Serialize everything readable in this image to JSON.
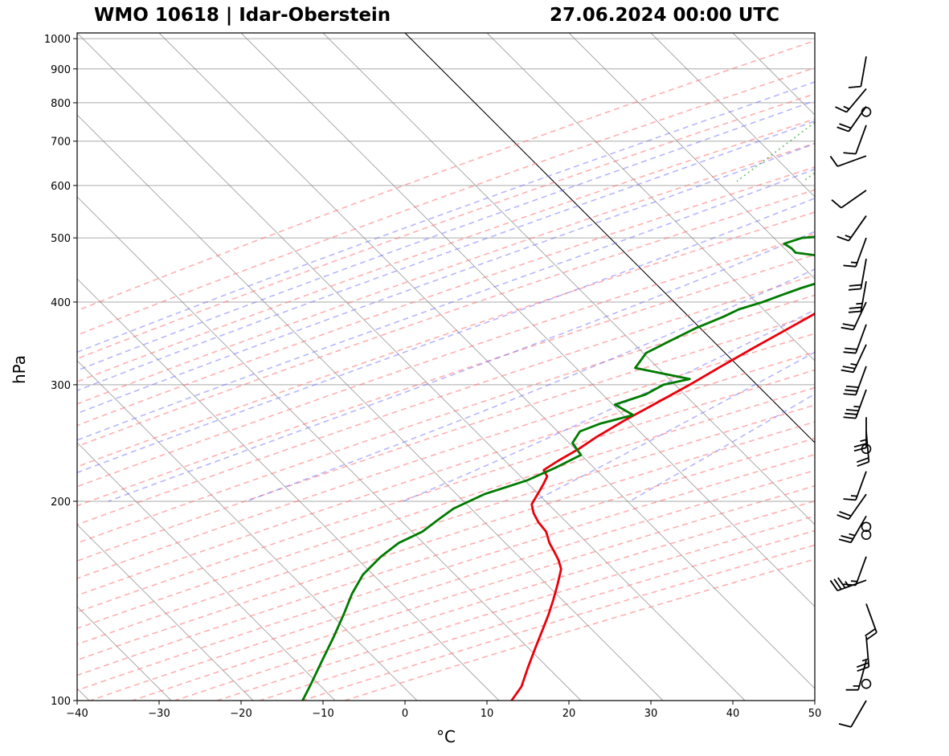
{
  "header": {
    "title_left": "WMO 10618 | Idar-Oberstein",
    "title_right": "27.06.2024 00:00 UTC"
  },
  "colors": {
    "temperature": "#e8000b",
    "dewpoint": "#007a00",
    "dry_adiabat": "#ff6e6e",
    "moist_adiabat": "#6e6eff",
    "mixing_ratio": "#3caa3c",
    "isotherm": "#808080",
    "isobar": "#aaaaaa"
  },
  "chart_data": {
    "type": "line",
    "title": "WMO 10618 | Idar-Oberstein 27.06.2024 00:00 UTC",
    "xlabel": "°C",
    "ylabel": "hPa",
    "xlim": [
      -40,
      50
    ],
    "ylim": [
      1020,
      100
    ],
    "y_scale": "log",
    "skew": "skew-T 45°",
    "grid": true,
    "x_ticks": [
      "−40",
      "−30",
      "−20",
      "−10",
      "0",
      "10",
      "20",
      "30",
      "40",
      "50"
    ],
    "y_ticks": [
      "100",
      "200",
      "300",
      "400",
      "500",
      "600",
      "700",
      "800",
      "900",
      "1000"
    ],
    "highlighted_isotherm_c": 0,
    "series": [
      {
        "name": "Temperature",
        "color": "#e8000b",
        "points": [
          [
            965,
            22.0
          ],
          [
            960,
            25.5
          ],
          [
            945,
            26.5
          ],
          [
            935,
            25.8
          ],
          [
            920,
            24.5
          ],
          [
            900,
            22.8
          ],
          [
            880,
            21.5
          ],
          [
            860,
            20.2
          ],
          [
            840,
            19.0
          ],
          [
            820,
            18.0
          ],
          [
            800,
            17.2
          ],
          [
            780,
            16.8
          ],
          [
            765,
            16.5
          ],
          [
            752,
            17.0
          ],
          [
            740,
            16.7
          ],
          [
            720,
            16.1
          ],
          [
            700,
            15.4
          ],
          [
            670,
            14.1
          ],
          [
            640,
            13.2
          ],
          [
            610,
            12.5
          ],
          [
            580,
            11.8
          ],
          [
            560,
            10.9
          ],
          [
            540,
            10.5
          ],
          [
            520,
            9.8
          ],
          [
            500,
            9.5
          ],
          [
            480,
            8.3
          ],
          [
            460,
            7.0
          ],
          [
            440,
            5.8
          ],
          [
            420,
            4.8
          ],
          [
            400,
            3.8
          ],
          [
            380,
            2.5
          ],
          [
            360,
            1.0
          ],
          [
            340,
            -0.6
          ],
          [
            320,
            -2.2
          ],
          [
            300,
            -3.8
          ],
          [
            280,
            -5.8
          ],
          [
            265,
            -7.4
          ],
          [
            250,
            -8.8
          ],
          [
            240,
            -9.5
          ],
          [
            230,
            -10.6
          ],
          [
            223,
            -11.2
          ],
          [
            218,
            -10.0
          ],
          [
            212,
            -9.5
          ],
          [
            205,
            -9.0
          ],
          [
            198,
            -8.5
          ],
          [
            192,
            -7.2
          ],
          [
            186,
            -5.5
          ],
          [
            180,
            -3.4
          ],
          [
            173,
            -1.6
          ],
          [
            168,
            0.0
          ],
          [
            163,
            1.6
          ],
          [
            158,
            3.0
          ],
          [
            150,
            4.4
          ],
          [
            142,
            5.8
          ],
          [
            135,
            7.0
          ],
          [
            127,
            8.3
          ],
          [
            120,
            9.5
          ],
          [
            112,
            11.0
          ],
          [
            105,
            12.5
          ],
          [
            100,
            13.0
          ]
        ]
      },
      {
        "name": "Dewpoint",
        "color": "#007a00",
        "points": [
          [
            960,
            18.2
          ],
          [
            955,
            17.0
          ],
          [
            945,
            16.5
          ],
          [
            930,
            17.2
          ],
          [
            920,
            16.0
          ],
          [
            910,
            17.5
          ],
          [
            890,
            18.5
          ],
          [
            870,
            19.5
          ],
          [
            850,
            19.8
          ],
          [
            830,
            20.0
          ],
          [
            810,
            19.6
          ],
          [
            790,
            19.0
          ],
          [
            770,
            18.7
          ],
          [
            750,
            18.4
          ],
          [
            730,
            17.5
          ],
          [
            710,
            15.0
          ],
          [
            700,
            13.5
          ],
          [
            690,
            13.0
          ],
          [
            685,
            15.0
          ],
          [
            675,
            18.5
          ],
          [
            660,
            16.5
          ],
          [
            640,
            13.5
          ],
          [
            620,
            11.5
          ],
          [
            605,
            6.5
          ],
          [
            595,
            3.5
          ],
          [
            585,
            3.0
          ],
          [
            570,
            1.8
          ],
          [
            555,
            0.2
          ],
          [
            540,
            -2.0
          ],
          [
            530,
            -0.2
          ],
          [
            520,
            1.5
          ],
          [
            510,
            1.0
          ],
          [
            505,
            -3.5
          ],
          [
            500,
            -8.0
          ],
          [
            490,
            -9.5
          ],
          [
            482,
            -8.0
          ],
          [
            475,
            -7.0
          ],
          [
            468,
            -2.5
          ],
          [
            460,
            -1.5
          ],
          [
            452,
            -0.3
          ],
          [
            442,
            0.5
          ],
          [
            432,
            0.2
          ],
          [
            420,
            -2.0
          ],
          [
            410,
            -3.5
          ],
          [
            400,
            -5.0
          ],
          [
            390,
            -7.0
          ],
          [
            380,
            -8.0
          ],
          [
            365,
            -10.0
          ],
          [
            350,
            -11.5
          ],
          [
            335,
            -13.0
          ],
          [
            318,
            -12.5
          ],
          [
            306,
            -4.5
          ],
          [
            300,
            -7.0
          ],
          [
            290,
            -8.0
          ],
          [
            280,
            -10.5
          ],
          [
            270,
            -7.0
          ],
          [
            262,
            -10.0
          ],
          [
            255,
            -11.5
          ],
          [
            245,
            -11.0
          ],
          [
            235,
            -8.5
          ],
          [
            225,
            -10.0
          ],
          [
            215,
            -12.0
          ],
          [
            205,
            -15.5
          ],
          [
            195,
            -17.5
          ],
          [
            188,
            -18.0
          ],
          [
            180,
            -18.5
          ],
          [
            173,
            -20.0
          ],
          [
            165,
            -20.5
          ],
          [
            155,
            -20.5
          ],
          [
            145,
            -19.5
          ],
          [
            135,
            -18.0
          ],
          [
            125,
            -16.5
          ],
          [
            115,
            -15.0
          ],
          [
            106,
            -13.5
          ],
          [
            100,
            -12.5
          ]
        ]
      }
    ],
    "winds": [
      {
        "p": 100,
        "dir": 210,
        "spd": 10
      },
      {
        "p": 106,
        "dir": 0,
        "spd": 0
      },
      {
        "p": 115,
        "dir": 195,
        "spd": 15
      },
      {
        "p": 125,
        "dir": 175,
        "spd": 25
      },
      {
        "p": 140,
        "dir": 160,
        "spd": 20
      },
      {
        "p": 152,
        "dir": 250,
        "spd": 35
      },
      {
        "p": 165,
        "dir": 200,
        "spd": 15
      },
      {
        "p": 178,
        "dir": 0,
        "spd": 0
      },
      {
        "p": 183,
        "dir": 0,
        "spd": 0
      },
      {
        "p": 190,
        "dir": 210,
        "spd": 25
      },
      {
        "p": 205,
        "dir": 215,
        "spd": 20
      },
      {
        "p": 222,
        "dir": 200,
        "spd": 15
      },
      {
        "p": 240,
        "dir": 0,
        "spd": 0
      },
      {
        "p": 255,
        "dir": 175,
        "spd": 20
      },
      {
        "p": 268,
        "dir": 180,
        "spd": 25
      },
      {
        "p": 295,
        "dir": 200,
        "spd": 35
      },
      {
        "p": 320,
        "dir": 200,
        "spd": 30
      },
      {
        "p": 345,
        "dir": 205,
        "spd": 25
      },
      {
        "p": 370,
        "dir": 200,
        "spd": 20
      },
      {
        "p": 400,
        "dir": 205,
        "spd": 20
      },
      {
        "p": 430,
        "dir": 190,
        "spd": 25
      },
      {
        "p": 465,
        "dir": 190,
        "spd": 20
      },
      {
        "p": 500,
        "dir": 200,
        "spd": 15
      },
      {
        "p": 540,
        "dir": 215,
        "spd": 15
      },
      {
        "p": 590,
        "dir": 235,
        "spd": 10
      },
      {
        "p": 665,
        "dir": 250,
        "spd": 10
      },
      {
        "p": 740,
        "dir": 200,
        "spd": 10
      },
      {
        "p": 775,
        "dir": 0,
        "spd": 0
      },
      {
        "p": 790,
        "dir": 215,
        "spd": 20
      },
      {
        "p": 840,
        "dir": 220,
        "spd": 15
      },
      {
        "p": 940,
        "dir": 190,
        "spd": 10
      }
    ]
  }
}
